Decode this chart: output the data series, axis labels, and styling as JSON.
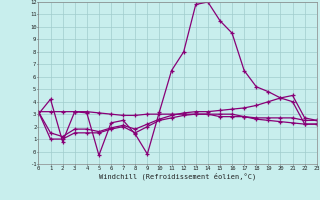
{
  "xlabel": "Windchill (Refroidissement éolien,°C)",
  "xlim": [
    0,
    23
  ],
  "ylim": [
    -1,
    12
  ],
  "xticks": [
    0,
    1,
    2,
    3,
    4,
    5,
    6,
    7,
    8,
    9,
    10,
    11,
    12,
    13,
    14,
    15,
    16,
    17,
    18,
    19,
    20,
    21,
    22,
    23
  ],
  "yticks": [
    -1,
    0,
    1,
    2,
    3,
    4,
    5,
    6,
    7,
    8,
    9,
    10,
    11,
    12
  ],
  "bg_color": "#c8eeed",
  "grid_color": "#a0cccc",
  "line_color": "#880077",
  "lines": [
    [
      3.0,
      4.2,
      0.8,
      3.2,
      3.1,
      -0.3,
      2.3,
      2.5,
      1.4,
      -0.2,
      3.2,
      6.5,
      8.0,
      11.8,
      12.0,
      10.5,
      9.5,
      6.5,
      5.2,
      4.8,
      4.3,
      4.0,
      2.2,
      2.2
    ],
    [
      3.2,
      3.2,
      3.2,
      3.2,
      3.2,
      3.1,
      3.0,
      2.9,
      2.9,
      3.0,
      3.0,
      3.0,
      3.0,
      3.0,
      3.0,
      2.8,
      2.8,
      2.8,
      2.7,
      2.7,
      2.7,
      2.7,
      2.5,
      2.5
    ],
    [
      3.2,
      1.5,
      1.2,
      1.8,
      1.8,
      1.6,
      1.9,
      2.1,
      1.8,
      2.2,
      2.6,
      2.9,
      3.1,
      3.2,
      3.2,
      3.3,
      3.4,
      3.5,
      3.7,
      4.0,
      4.3,
      4.5,
      2.7,
      2.5
    ],
    [
      3.2,
      1.0,
      1.0,
      1.5,
      1.5,
      1.5,
      1.8,
      2.0,
      1.5,
      2.0,
      2.5,
      2.7,
      2.9,
      3.0,
      3.0,
      3.0,
      3.0,
      2.8,
      2.6,
      2.5,
      2.4,
      2.3,
      2.2,
      2.2
    ]
  ]
}
